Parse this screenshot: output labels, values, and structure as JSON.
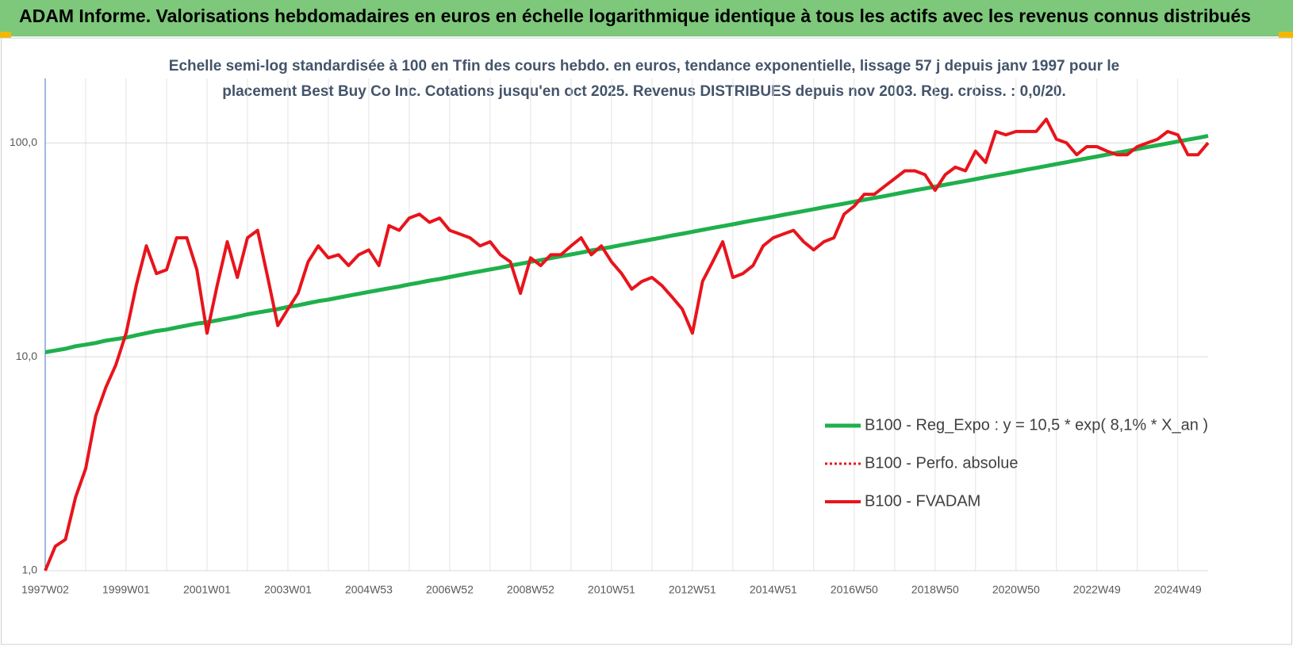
{
  "header": {
    "title": "ADAM Informe. Valorisations hebdomadaires en euros en échelle logarithmique identique à tous les actifs avec les revenus connus distribués"
  },
  "chart_data": {
    "type": "line",
    "log_y": true,
    "grid": true,
    "legend": "lower right",
    "subtitle": [
      "Echelle semi-log standardisée à 100 en Tfin des cours hebdo. en euros, tendance exponentielle, lissage 57 j depuis janv 1997 pour le",
      "placement Best Buy Co Inc. Cotations jusqu'en oct 2025. Revenus DISTRIBUES depuis nov 2003. Reg. croiss. : 0,0/20."
    ],
    "categories": [
      "1997W02",
      null,
      null,
      null,
      null,
      null,
      null,
      null,
      "1999W01",
      null,
      null,
      null,
      null,
      null,
      null,
      null,
      "2001W01",
      null,
      null,
      null,
      null,
      null,
      null,
      null,
      "2003W01",
      null,
      null,
      null,
      null,
      null,
      null,
      null,
      "2004W53",
      null,
      null,
      null,
      null,
      null,
      null,
      null,
      "2006W52",
      null,
      null,
      null,
      null,
      null,
      null,
      null,
      "2008W52",
      null,
      null,
      null,
      null,
      null,
      null,
      null,
      "2010W51",
      null,
      null,
      null,
      null,
      null,
      null,
      null,
      "2012W51",
      null,
      null,
      null,
      null,
      null,
      null,
      null,
      "2014W51",
      null,
      null,
      null,
      null,
      null,
      null,
      null,
      "2016W50",
      null,
      null,
      null,
      null,
      null,
      null,
      null,
      "2018W50",
      null,
      null,
      null,
      null,
      null,
      null,
      null,
      "2020W50",
      null,
      null,
      null,
      null,
      null,
      null,
      null,
      "2022W49",
      null,
      null,
      null,
      null,
      null,
      null,
      null,
      "2024W49",
      null,
      null,
      null
    ],
    "ylim": [
      1,
      200
    ],
    "yticks": [
      {
        "value": 1,
        "label": "1,0"
      },
      {
        "value": 10,
        "label": "10,0"
      },
      {
        "value": 100,
        "label": "100,0"
      }
    ],
    "series": [
      {
        "name": "B100 - Reg_Expo : y = 10,5 * exp( 8,1% *  X_an )",
        "color": "#1fb04c",
        "width": 5,
        "values": [
          10.5,
          10.7,
          10.9,
          11.2,
          11.4,
          11.6,
          11.9,
          12.1,
          12.3,
          12.6,
          12.9,
          13.2,
          13.4,
          13.7,
          14.0,
          14.3,
          14.5,
          14.8,
          15.1,
          15.4,
          15.8,
          16.1,
          16.4,
          16.7,
          17.1,
          17.4,
          17.8,
          18.2,
          18.5,
          18.9,
          19.3,
          19.7,
          20.1,
          20.5,
          20.9,
          21.3,
          21.8,
          22.2,
          22.7,
          23.1,
          23.6,
          24.1,
          24.6,
          25.1,
          25.6,
          26.1,
          26.7,
          27.2,
          27.8,
          28.3,
          28.9,
          29.5,
          30.1,
          30.7,
          31.4,
          32.0,
          32.6,
          33.3,
          34.0,
          34.7,
          35.4,
          36.1,
          36.9,
          37.6,
          38.4,
          39.2,
          40.0,
          40.8,
          41.6,
          42.5,
          43.4,
          44.2,
          45.1,
          46.1,
          47.0,
          48.0,
          49.0,
          50.0,
          51.0,
          52.0,
          53.1,
          54.2,
          55.3,
          56.4,
          57.6,
          58.8,
          60.0,
          61.2,
          62.4,
          63.7,
          65.0,
          66.3,
          67.7,
          69.1,
          70.5,
          71.9,
          73.4,
          74.9,
          76.4,
          78.0,
          79.6,
          81.2,
          82.9,
          84.6,
          86.3,
          88.1,
          89.9,
          91.7,
          93.6,
          95.5,
          97.4,
          99.4,
          101.4,
          103.5,
          105.6,
          107.8
        ]
      },
      {
        "name": "B100 - Perfo. absolue",
        "color": "#e8141c",
        "dash": "dotted"
      },
      {
        "name": "B100 - FVADAM",
        "color": "#e8141c",
        "width": 4,
        "values": [
          1.0,
          1.3,
          1.4,
          2.2,
          3.0,
          5.3,
          7.2,
          9.2,
          12.9,
          21.5,
          33,
          24.5,
          25.5,
          36,
          36,
          25.5,
          12.9,
          21.5,
          34.5,
          23.5,
          36,
          39,
          23.5,
          14,
          16.7,
          19.8,
          27.8,
          33,
          29,
          30,
          26.7,
          30,
          31.6,
          26.7,
          41,
          39,
          44.5,
          46.4,
          42.5,
          44.5,
          39,
          37.5,
          36,
          33,
          34.5,
          30,
          27.8,
          19.8,
          29,
          26.7,
          30,
          30,
          33,
          36,
          30,
          33,
          27.8,
          24.5,
          20.7,
          22.5,
          23.5,
          21.5,
          19,
          16.7,
          12.9,
          22.5,
          27.8,
          34.5,
          23.5,
          24.5,
          26.7,
          33,
          36,
          37.5,
          39,
          34.5,
          31.6,
          34.5,
          36,
          46.4,
          50.6,
          57.5,
          57.5,
          62.6,
          68,
          74,
          74,
          71,
          60,
          71,
          77,
          74,
          91.5,
          81,
          113,
          109,
          113,
          113,
          113,
          129,
          104,
          100,
          88,
          96,
          96,
          91.5,
          88,
          88,
          96,
          100,
          104,
          113,
          109,
          88,
          88,
          100
        ]
      }
    ]
  }
}
